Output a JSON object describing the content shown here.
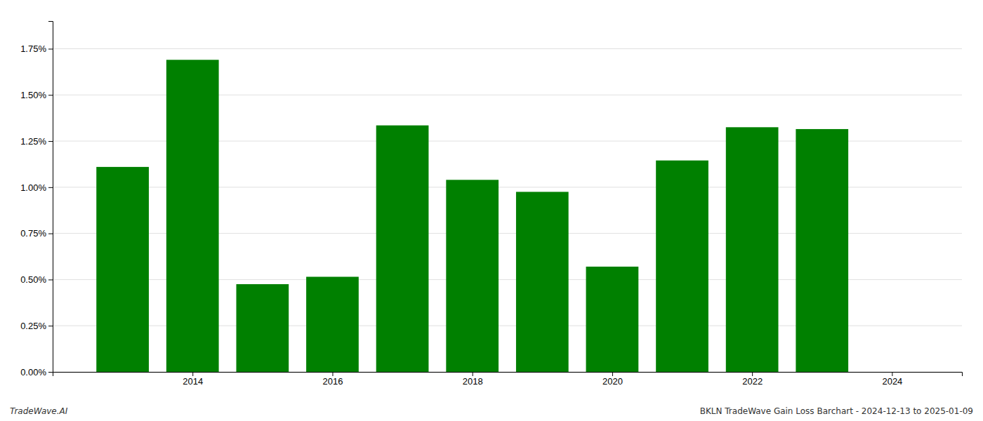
{
  "chart_data": {
    "type": "bar",
    "x": [
      2013,
      2014,
      2015,
      2016,
      2017,
      2018,
      2019,
      2020,
      2021,
      2022,
      2023,
      2024
    ],
    "values": [
      0.0111,
      0.0169,
      0.00475,
      0.00515,
      0.01335,
      0.0104,
      0.00975,
      0.0057,
      0.01145,
      0.01325,
      0.01315,
      0.0
    ],
    "color": "#008000",
    "xlim": [
      2012,
      2025
    ],
    "xticks": [
      2014,
      2016,
      2018,
      2020,
      2022,
      2024
    ],
    "ylim": [
      0.0,
      0.019
    ],
    "yticks": [
      {
        "value": 0.0,
        "label": "0.00%"
      },
      {
        "value": 0.0025,
        "label": "0.25%"
      },
      {
        "value": 0.005,
        "label": "0.50%"
      },
      {
        "value": 0.0075,
        "label": "0.75%"
      },
      {
        "value": 0.01,
        "label": "1.00%"
      },
      {
        "value": 0.0125,
        "label": "1.25%"
      },
      {
        "value": 0.015,
        "label": "1.50%"
      },
      {
        "value": 0.0175,
        "label": "1.75%"
      }
    ],
    "grid": true,
    "annotations": [
      "TradeWave.AI",
      "BKLN TradeWave Gain Loss Barchart - 2024-12-13 to 2025-01-09"
    ]
  }
}
